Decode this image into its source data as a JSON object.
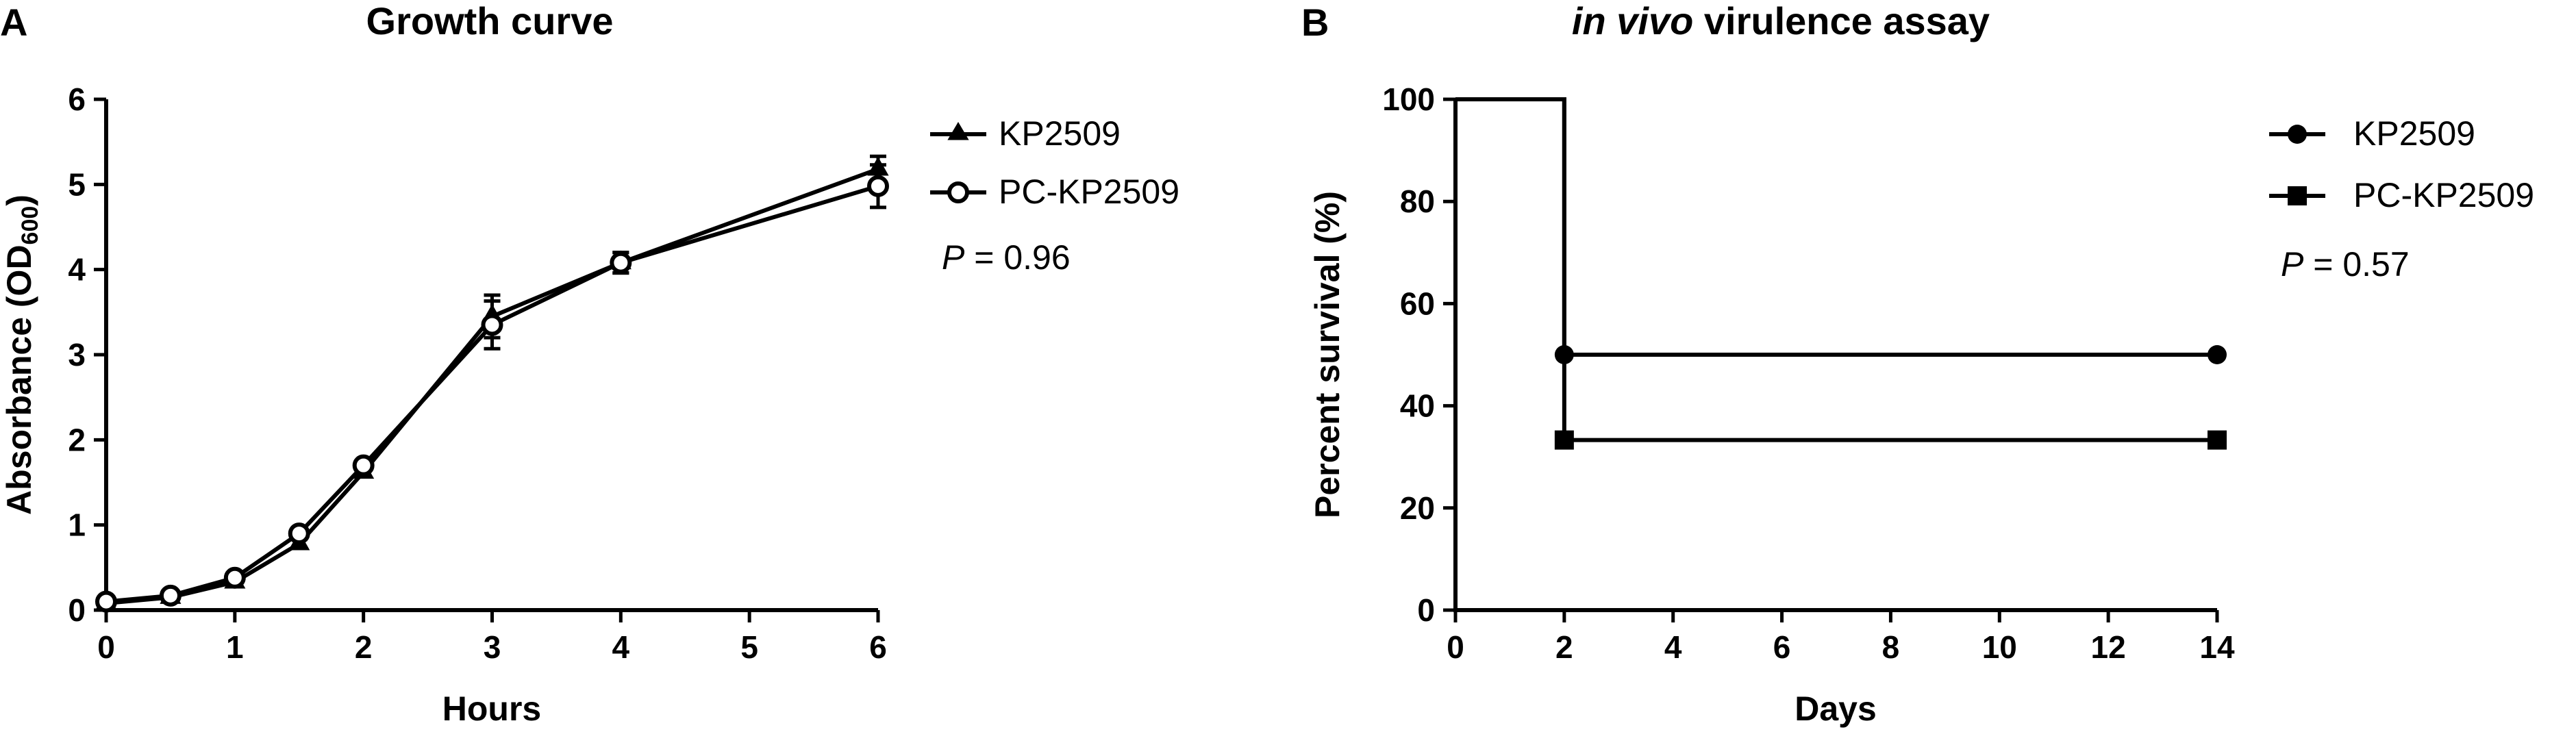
{
  "chart_data": [
    {
      "panel_label": "A",
      "type": "line",
      "title": "Growth curve",
      "xlabel": "Hours",
      "ylabel_main": "Absorbance (OD",
      "ylabel_sub": "600",
      "ylabel_close": ")",
      "xlim": [
        0,
        6
      ],
      "ylim": [
        0,
        6
      ],
      "xticks": [
        0,
        1,
        2,
        3,
        4,
        5,
        6
      ],
      "yticks": [
        0,
        1,
        2,
        3,
        4,
        5,
        6
      ],
      "grid": false,
      "legend_position": "top-right",
      "series": [
        {
          "name": "KP2509",
          "marker": "triangle",
          "x": [
            0,
            0.5,
            1,
            1.5,
            2,
            3,
            4,
            6
          ],
          "y": [
            0.08,
            0.15,
            0.33,
            0.78,
            1.62,
            3.45,
            4.08,
            5.18
          ],
          "err": [
            0.03,
            0.03,
            0.05,
            0.05,
            0.05,
            0.25,
            0.12,
            0.15
          ]
        },
        {
          "name": "PC-KP2509",
          "marker": "open-circle",
          "x": [
            0,
            0.5,
            1,
            1.5,
            2,
            3,
            4,
            6
          ],
          "y": [
            0.1,
            0.17,
            0.38,
            0.9,
            1.7,
            3.35,
            4.08,
            4.98
          ],
          "err": [
            0.03,
            0.03,
            0.05,
            0.05,
            0.05,
            0.28,
            0.12,
            0.25
          ]
        }
      ],
      "annotation": {
        "p_label": "P",
        "p_rest": " = 0.96"
      }
    },
    {
      "panel_label": "B",
      "type": "line",
      "title_italic": "in vivo",
      "title_rest": " virulence assay",
      "xlabel": "Days",
      "ylabel": "Percent survival (%)",
      "xlim": [
        0,
        14
      ],
      "ylim": [
        0,
        100
      ],
      "xticks": [
        0,
        2,
        4,
        6,
        8,
        10,
        12,
        14
      ],
      "yticks": [
        0,
        20,
        40,
        60,
        80,
        100
      ],
      "grid": false,
      "legend_position": "top-right",
      "series": [
        {
          "name": "KP2509",
          "marker": "filled-circle",
          "steps": [
            [
              0,
              100
            ],
            [
              2,
              50
            ],
            [
              14,
              50
            ]
          ],
          "markers": [
            [
              2,
              50
            ],
            [
              14,
              50
            ]
          ]
        },
        {
          "name": "PC-KP2509",
          "marker": "filled-square",
          "steps": [
            [
              0,
              100
            ],
            [
              2,
              33.3
            ],
            [
              14,
              33.3
            ]
          ],
          "markers": [
            [
              2,
              33.3
            ],
            [
              14,
              33.3
            ]
          ]
        }
      ],
      "annotation": {
        "p_label": "P",
        "p_rest": " = 0.57"
      }
    }
  ]
}
